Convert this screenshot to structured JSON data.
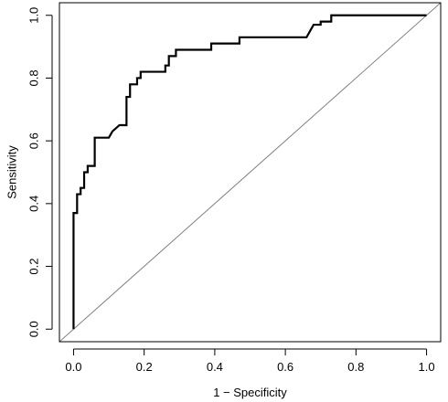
{
  "chart_data": {
    "type": "line",
    "title": "",
    "xlabel": "1 − Specificity",
    "ylabel": "Sensitivity",
    "xlim": [
      -0.04,
      1.04
    ],
    "ylim": [
      -0.04,
      1.04
    ],
    "x_ticks": [
      0.0,
      0.2,
      0.4,
      0.6,
      0.8,
      1.0
    ],
    "x_tick_labels": [
      "0.0",
      "0.2",
      "0.4",
      "0.6",
      "0.8",
      "1.0"
    ],
    "y_ticks": [
      0.0,
      0.2,
      0.4,
      0.6,
      0.8,
      1.0
    ],
    "y_tick_labels": [
      "0.0",
      "0.2",
      "0.4",
      "0.6",
      "0.8",
      "1.0"
    ],
    "grid": false,
    "legend": "none",
    "series": [
      {
        "color": "#000000",
        "x": [
          0.0,
          0.0,
          0.01,
          0.01,
          0.02,
          0.02,
          0.03,
          0.03,
          0.04,
          0.04,
          0.06,
          0.06,
          0.1,
          0.11,
          0.11,
          0.13,
          0.13,
          0.15,
          0.15,
          0.16,
          0.16,
          0.18,
          0.18,
          0.19,
          0.19,
          0.26,
          0.26,
          0.27,
          0.27,
          0.29,
          0.29,
          0.39,
          0.39,
          0.47,
          0.47,
          0.66,
          0.67,
          0.67,
          0.68,
          0.68,
          0.7,
          0.7,
          0.73,
          0.73,
          1.0
        ],
        "y": [
          0.0,
          0.37,
          0.37,
          0.43,
          0.43,
          0.45,
          0.45,
          0.5,
          0.5,
          0.52,
          0.52,
          0.61,
          0.61,
          0.63,
          0.63,
          0.65,
          0.65,
          0.65,
          0.74,
          0.74,
          0.78,
          0.78,
          0.8,
          0.8,
          0.82,
          0.82,
          0.84,
          0.84,
          0.87,
          0.87,
          0.89,
          0.89,
          0.91,
          0.91,
          0.93,
          0.93,
          0.95,
          0.95,
          0.97,
          0.97,
          0.97,
          0.98,
          0.98,
          1.0,
          1.0
        ]
      }
    ],
    "reference_line": {
      "color": "#808080",
      "x": [
        -0.04,
        1.04
      ],
      "y": [
        -0.04,
        1.04
      ]
    }
  }
}
